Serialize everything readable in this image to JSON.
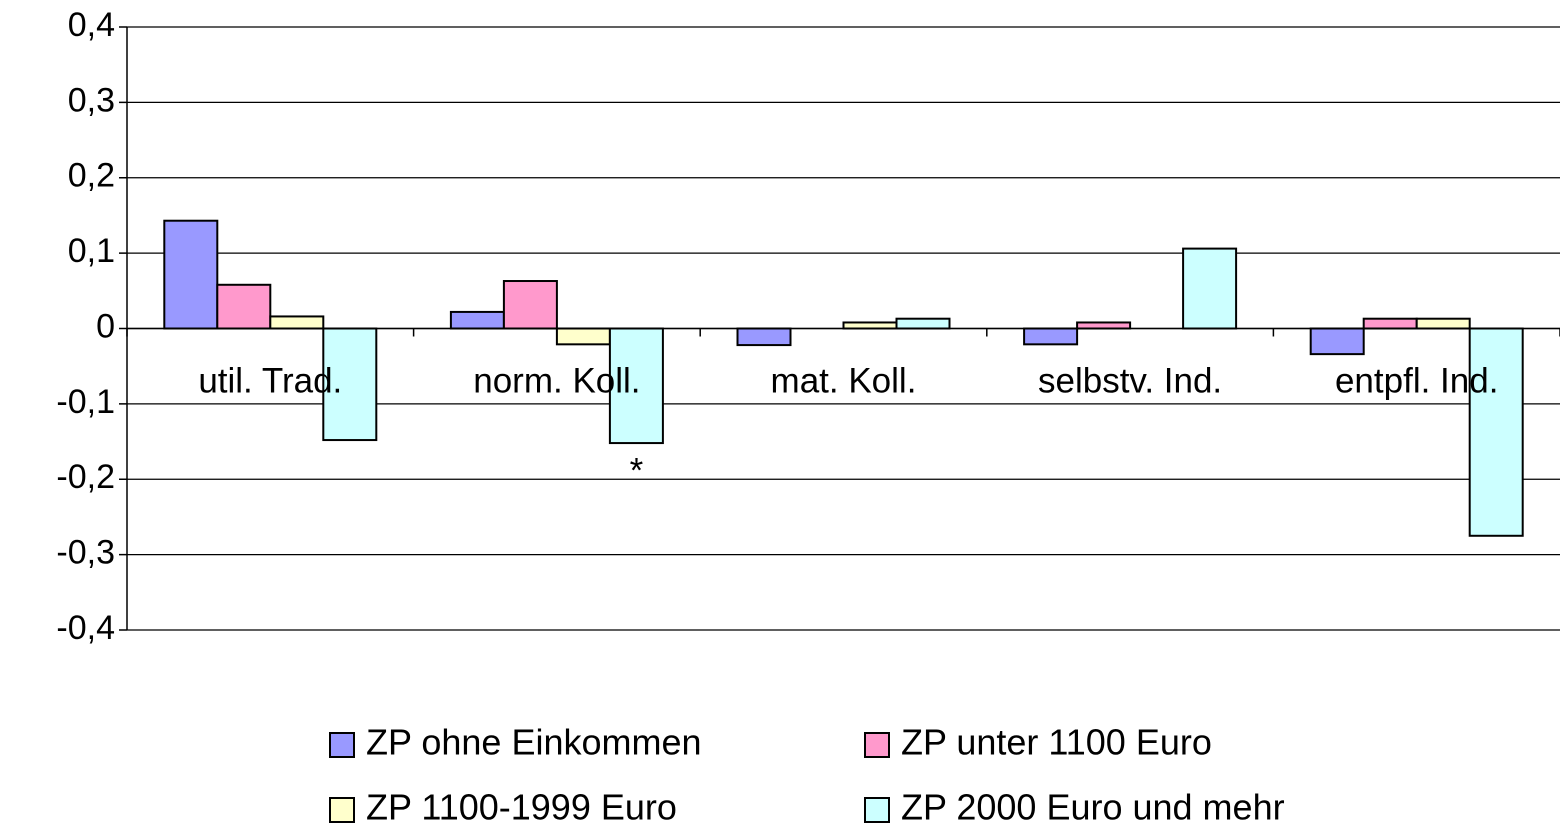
{
  "chart_data": {
    "type": "bar",
    "categories": [
      "util. Trad.",
      "norm. Koll.",
      "mat. Koll.",
      "selbstv. Ind.",
      "entpfl. Ind."
    ],
    "series": [
      {
        "name": "ZP ohne Einkommen",
        "color": "#9999ff",
        "values": [
          0.143,
          0.022,
          -0.022,
          -0.021,
          -0.034
        ]
      },
      {
        "name": "ZP unter 1100 Euro",
        "color": "#ff99cc",
        "values": [
          0.058,
          0.063,
          0,
          0.008,
          0.013
        ]
      },
      {
        "name": "ZP 1100-1999 Euro",
        "color": "#ffffcc",
        "values": [
          0.016,
          -0.021,
          0.008,
          0,
          0.013
        ]
      },
      {
        "name": "ZP 2000 Euro und mehr",
        "color": "#ccffff",
        "values": [
          -0.148,
          -0.152,
          0.013,
          0.106,
          -0.275
        ]
      }
    ],
    "annotation": "*",
    "ylim": [
      -0.4,
      0.4
    ],
    "yticks": [
      {
        "value": -0.4,
        "label": "-0,4"
      },
      {
        "value": -0.3,
        "label": "-0,3"
      },
      {
        "value": -0.2,
        "label": "-0,2"
      },
      {
        "value": -0.1,
        "label": "-0,1"
      },
      0,
      {
        "value": 0.1,
        "label": "0,1"
      },
      {
        "value": 0.2,
        "label": "0,2"
      },
      {
        "value": 0.3,
        "label": "0,3"
      },
      {
        "value": 0.4,
        "label": "0,4"
      }
    ],
    "grid": true
  }
}
